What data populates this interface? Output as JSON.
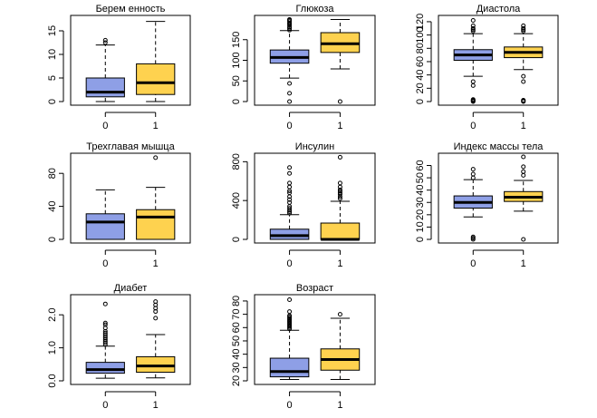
{
  "colors": {
    "group0": "#8e9fe6",
    "group1": "#fed24f"
  },
  "chart_data": [
    {
      "type": "boxplot",
      "title": "Берем енность",
      "categories": [
        "0",
        "1"
      ],
      "ylim": [
        0,
        17.5
      ],
      "yticks": [
        0,
        5,
        10,
        15
      ],
      "boxes": [
        {
          "min": 0,
          "q1": 1,
          "median": 2,
          "q3": 5,
          "max": 12,
          "outliers": [
            13,
            12.5
          ]
        },
        {
          "min": 0,
          "q1": 1.5,
          "median": 4,
          "q3": 8,
          "max": 17,
          "outliers": []
        }
      ]
    },
    {
      "type": "boxplot",
      "title": "Глюкоза",
      "categories": [
        "0",
        "1"
      ],
      "ylim": [
        0,
        200
      ],
      "yticks": [
        0,
        50,
        100,
        150
      ],
      "boxes": [
        {
          "min": 57,
          "q1": 93,
          "median": 107,
          "q3": 125,
          "max": 172,
          "outliers": [
            0,
            20,
            44,
            173,
            177,
            180,
            184,
            188,
            190,
            194,
            197,
            199
          ]
        },
        {
          "min": 79,
          "q1": 119,
          "median": 140,
          "q3": 167,
          "max": 199,
          "outliers": [
            0
          ]
        }
      ]
    },
    {
      "type": "boxplot",
      "title": "Диастола",
      "categories": [
        "0",
        "1"
      ],
      "ylim": [
        0,
        124
      ],
      "yticks": [
        0,
        20,
        40,
        60,
        80,
        100,
        120
      ],
      "boxes": [
        {
          "min": 38,
          "q1": 62,
          "median": 70,
          "q3": 78,
          "max": 102,
          "outliers": [
            0,
            1,
            2,
            3,
            24,
            30,
            106,
            108,
            110,
            114,
            122
          ]
        },
        {
          "min": 48,
          "q1": 66,
          "median": 74,
          "q3": 82,
          "max": 102,
          "outliers": [
            0,
            1,
            2,
            30,
            38,
            106,
            108,
            110,
            114
          ]
        }
      ]
    },
    {
      "type": "boxplot",
      "title": "Трехглавая мышца",
      "categories": [
        "0",
        "1"
      ],
      "ylim": [
        0,
        100
      ],
      "yticks": [
        0,
        40,
        80
      ],
      "boxes": [
        {
          "min": 0,
          "q1": 0,
          "median": 21,
          "q3": 31,
          "max": 60,
          "outliers": []
        },
        {
          "min": 0,
          "q1": 0,
          "median": 27,
          "q3": 36,
          "max": 63,
          "outliers": [
            99
          ]
        }
      ]
    },
    {
      "type": "boxplot",
      "title": "Инсулин",
      "categories": [
        "0",
        "1"
      ],
      "ylim": [
        0,
        850
      ],
      "yticks": [
        0,
        400,
        800
      ],
      "boxes": [
        {
          "min": 0,
          "q1": 0,
          "median": 39,
          "q3": 105,
          "max": 255,
          "outliers": [
            270,
            285,
            300,
            320,
            340,
            380,
            410,
            440,
            480,
            500,
            540,
            580,
            680,
            740
          ]
        },
        {
          "min": 0,
          "q1": 0,
          "median": 0,
          "q3": 168,
          "max": 392,
          "outliers": [
            420,
            440,
            465,
            480,
            495,
            510,
            540,
            580,
            846
          ]
        }
      ]
    },
    {
      "type": "boxplot",
      "title": "Индекс массы тела",
      "categories": [
        "0",
        "1"
      ],
      "ylim": [
        0,
        67
      ],
      "yticks": [
        0,
        10,
        20,
        30,
        40,
        50,
        60
      ],
      "boxes": [
        {
          "min": 18.2,
          "q1": 25.4,
          "median": 30.0,
          "q3": 35.3,
          "max": 48.5,
          "outliers": [
            0,
            1,
            2,
            50,
            53,
            57
          ]
        },
        {
          "min": 22.9,
          "q1": 30.8,
          "median": 34.2,
          "q3": 38.8,
          "max": 47.9,
          "outliers": [
            0,
            52,
            55,
            59,
            67
          ]
        }
      ]
    },
    {
      "type": "boxplot",
      "title": "Диабет",
      "categories": [
        "0",
        "1"
      ],
      "ylim": [
        0,
        2.5
      ],
      "yticks": [
        0.0,
        1.0,
        2.0
      ],
      "ytick_labels": [
        "0.0",
        "1.0",
        "2.0"
      ],
      "boxes": [
        {
          "min": 0.08,
          "q1": 0.23,
          "median": 0.34,
          "q3": 0.56,
          "max": 1.05,
          "outliers": [
            1.1,
            1.15,
            1.2,
            1.25,
            1.3,
            1.35,
            1.4,
            1.45,
            1.5,
            1.6,
            1.7,
            1.75,
            2.33
          ]
        },
        {
          "min": 0.09,
          "q1": 0.26,
          "median": 0.45,
          "q3": 0.73,
          "max": 1.4,
          "outliers": [
            1.9,
            2.1,
            2.2,
            2.3,
            2.4
          ]
        }
      ]
    },
    {
      "type": "boxplot",
      "title": "Возраст",
      "categories": [
        "0",
        "1"
      ],
      "ylim": [
        20,
        82
      ],
      "yticks": [
        20,
        30,
        40,
        50,
        60,
        70,
        80
      ],
      "boxes": [
        {
          "min": 21,
          "q1": 23,
          "median": 27,
          "q3": 37,
          "max": 58,
          "outliers": [
            59,
            60,
            61,
            62,
            63,
            64,
            65,
            66,
            67,
            68,
            69,
            72,
            81
          ]
        },
        {
          "min": 21,
          "q1": 28,
          "median": 36,
          "q3": 44,
          "max": 67,
          "outliers": [
            70
          ]
        }
      ]
    }
  ]
}
